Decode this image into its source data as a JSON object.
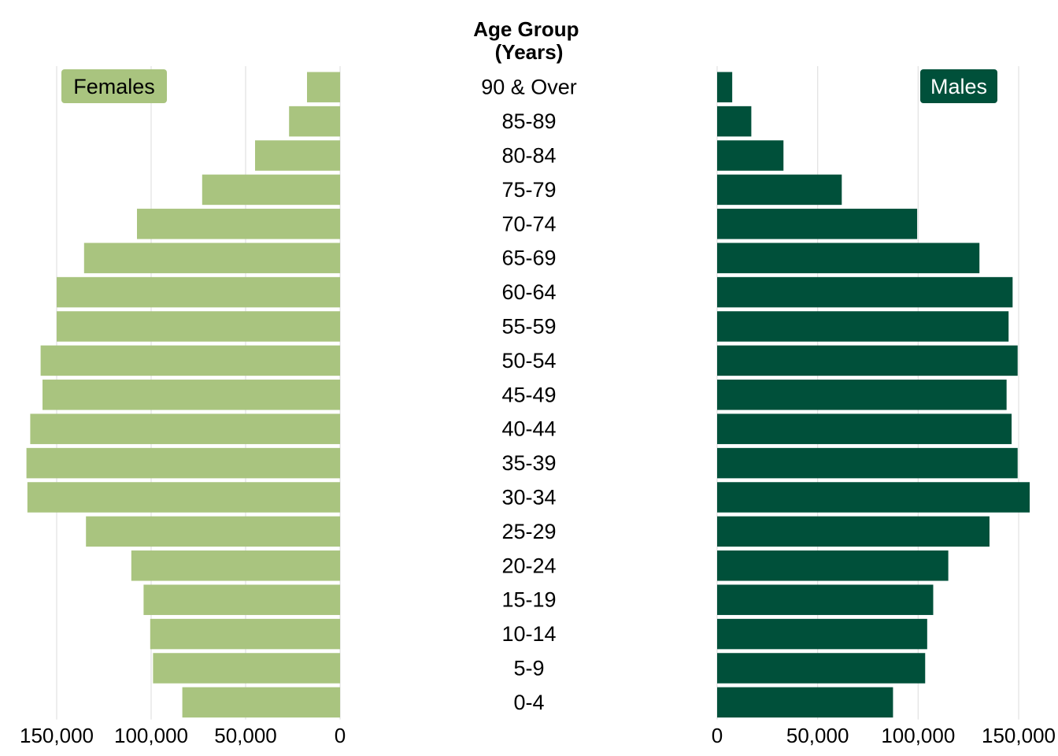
{
  "chart_data": {
    "type": "bar",
    "orientation": "horizontal",
    "layout": "population-pyramid",
    "center_title": [
      "Age Group",
      "(Years)"
    ],
    "categories": [
      "90 & Over",
      "85-89",
      "80-84",
      "75-79",
      "70-74",
      "65-69",
      "60-64",
      "55-59",
      "50-54",
      "45-49",
      "40-44",
      "35-39",
      "30-34",
      "25-29",
      "20-24",
      "15-19",
      "10-14",
      "5-9",
      "0-4"
    ],
    "series": [
      {
        "name": "Females",
        "side": "left",
        "color": "#a9c47f",
        "label_color": "#000000",
        "values": [
          17500,
          27000,
          45000,
          73000,
          107500,
          135500,
          150000,
          150000,
          158500,
          157500,
          164000,
          166000,
          165500,
          134500,
          110500,
          104000,
          100500,
          99000,
          83500
        ]
      },
      {
        "name": "Males",
        "side": "right",
        "color": "#00503a",
        "label_color": "#ffffff",
        "values": [
          7500,
          17000,
          33000,
          62000,
          99500,
          130500,
          147000,
          145000,
          149500,
          144000,
          146500,
          149500,
          155500,
          135500,
          115000,
          107500,
          104500,
          103500,
          87500
        ]
      }
    ],
    "xlim": [
      0,
      150000
    ],
    "x_ticks": [
      0,
      50000,
      100000,
      150000
    ],
    "x_tick_labels": [
      "0",
      "50,000",
      "100,000",
      "150,000"
    ],
    "grid": true,
    "legend_placement": "top-outer"
  }
}
